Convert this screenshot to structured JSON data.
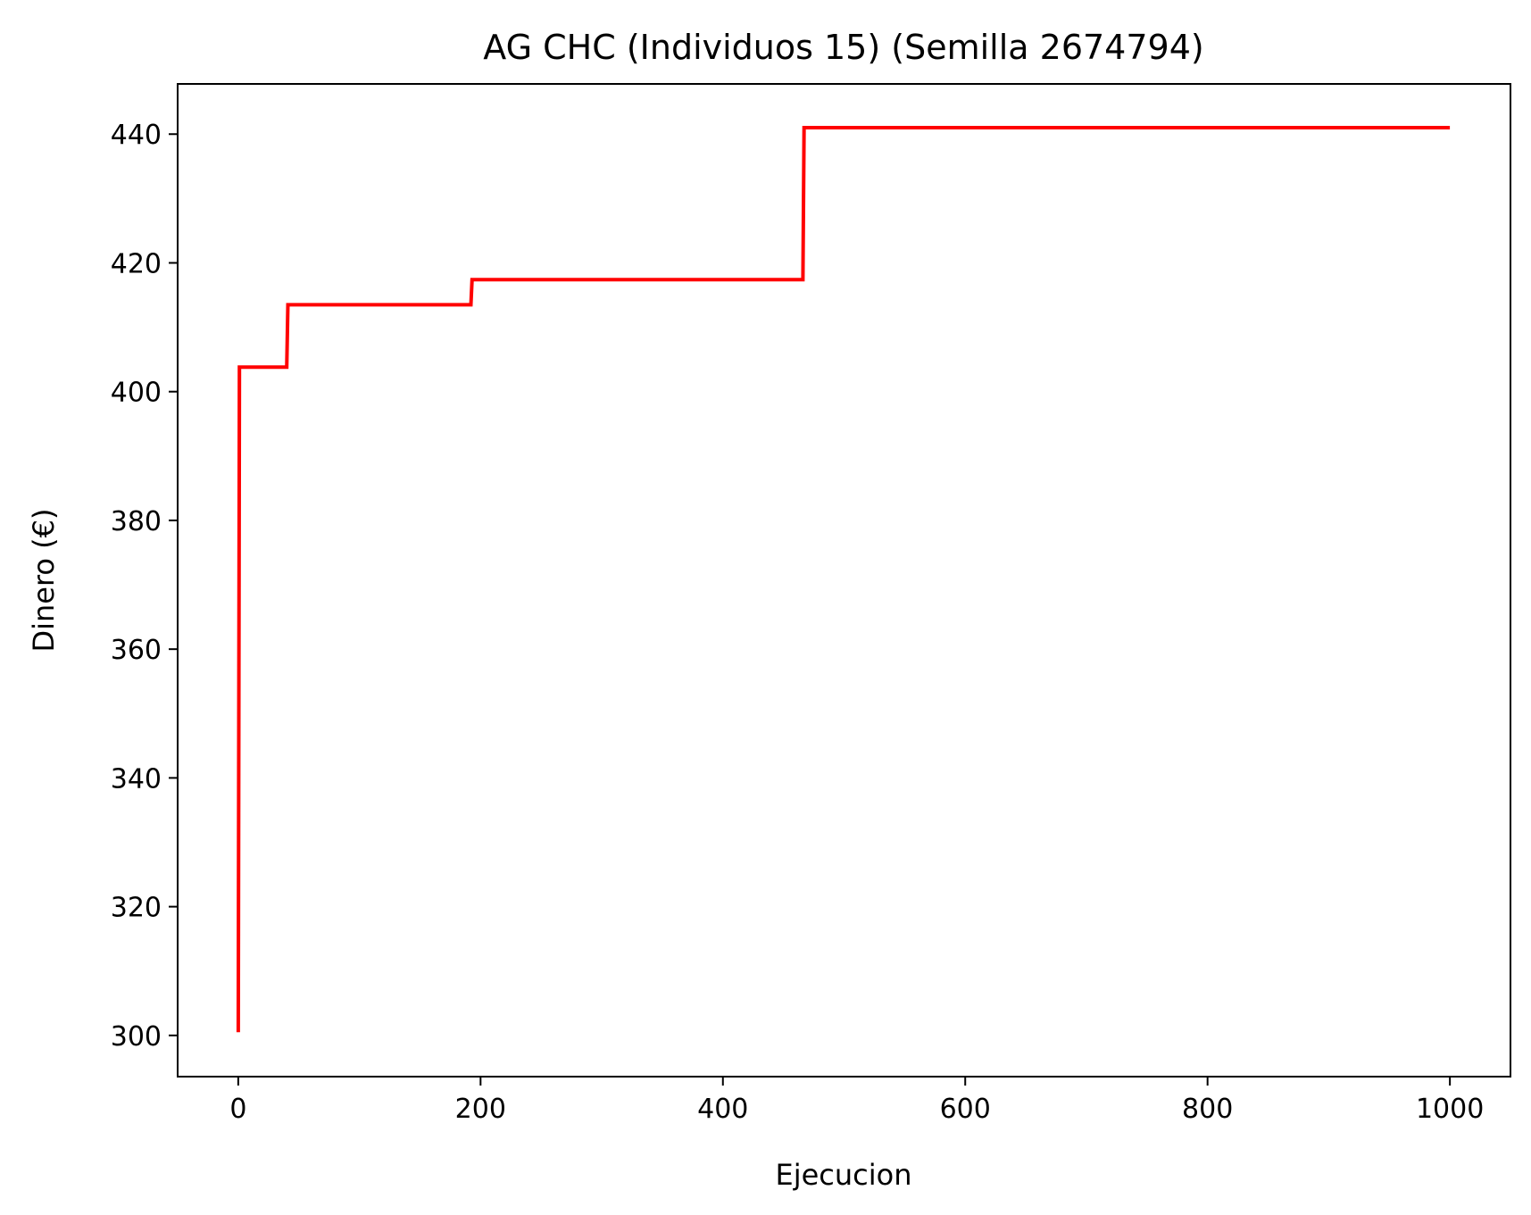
{
  "chart_data": {
    "type": "line",
    "title": "AG CHC (Individuos 15) (Semilla 2674794)",
    "xlabel": "Ejecucion",
    "ylabel": "Dinero (€)",
    "xlim": [
      -50,
      1050
    ],
    "ylim": [
      293.6,
      447.8
    ],
    "x_ticks": [
      0,
      200,
      400,
      600,
      800,
      1000
    ],
    "y_ticks": [
      300,
      320,
      340,
      360,
      380,
      400,
      420,
      440
    ],
    "grid": false,
    "legend": "none",
    "series": [
      {
        "color": "#ff0000",
        "points": [
          [
            0,
            300.5
          ],
          [
            1,
            403.8
          ],
          [
            40,
            403.8
          ],
          [
            41,
            413.5
          ],
          [
            192,
            413.5
          ],
          [
            193,
            417.4
          ],
          [
            466,
            417.4
          ],
          [
            467,
            441.0
          ],
          [
            1000,
            441.0
          ]
        ]
      }
    ]
  }
}
